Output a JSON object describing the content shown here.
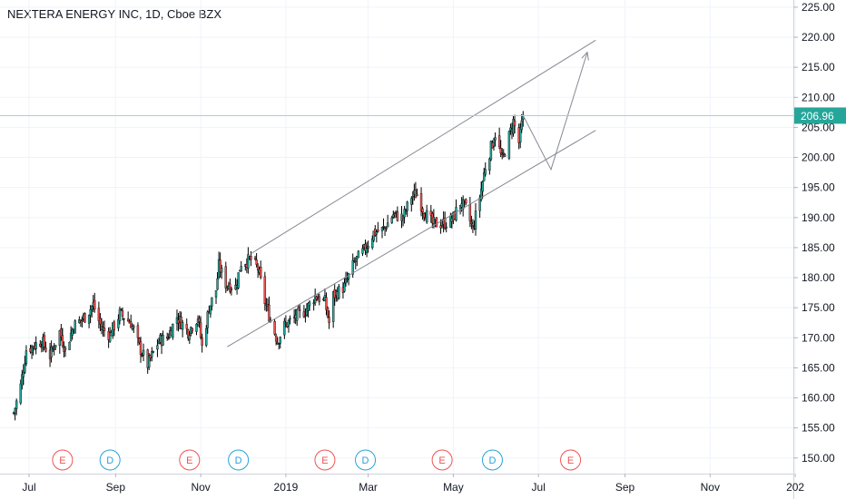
{
  "header": {
    "title": "NEXTERA ENERGY INC, 1D, Cboe BZX"
  },
  "chart_data": {
    "type": "candlestick",
    "title": "NEXTERA ENERGY INC, 1D, Cboe BZX",
    "last_price": 206.96,
    "y_ticks": [
      "225.00",
      "220.00",
      "215.00",
      "210.00",
      "205.00",
      "200.00",
      "195.00",
      "190.00",
      "185.00",
      "180.00",
      "175.00",
      "170.00",
      "165.00",
      "160.00",
      "155.00",
      "150.00"
    ],
    "x_ticks": [
      "Jul",
      "Sep",
      "Nov",
      "2019",
      "Mar",
      "May",
      "Jul",
      "Sep",
      "Nov",
      "202"
    ],
    "ylim": [
      148.5,
      225.5
    ],
    "grid": true,
    "colors": {
      "up": "#26a69a",
      "down": "#ef5350",
      "wick": "#000000",
      "line": "#868993",
      "price_line": "#9fd4d6",
      "label_bg": "#26a69a"
    },
    "events": [
      {
        "label": "E",
        "date": "2018-07-25"
      },
      {
        "label": "D",
        "date": "2018-08-28"
      },
      {
        "label": "E",
        "date": "2018-10-24"
      },
      {
        "label": "D",
        "date": "2018-11-28"
      },
      {
        "label": "E",
        "date": "2019-01-29"
      },
      {
        "label": "D",
        "date": "2019-02-27"
      },
      {
        "label": "E",
        "date": "2019-04-23"
      },
      {
        "label": "D",
        "date": "2019-05-29"
      },
      {
        "label": "E",
        "date": "2019-07-24"
      }
    ],
    "price_path": [
      [
        "2018-06-20",
        157.5
      ],
      [
        "2018-06-25",
        162
      ],
      [
        "2018-06-29",
        168
      ],
      [
        "2018-07-10",
        169.5
      ],
      [
        "2018-07-16",
        167
      ],
      [
        "2018-07-23",
        171
      ],
      [
        "2018-07-27",
        168
      ],
      [
        "2018-08-02",
        172
      ],
      [
        "2018-08-10",
        173.5
      ],
      [
        "2018-08-16",
        175.5
      ],
      [
        "2018-08-22",
        171.5
      ],
      [
        "2018-08-28",
        170.5
      ],
      [
        "2018-09-04",
        174
      ],
      [
        "2018-09-12",
        172.5
      ],
      [
        "2018-09-18",
        168.5
      ],
      [
        "2018-09-24",
        165.5
      ],
      [
        "2018-10-02",
        169.5
      ],
      [
        "2018-10-08",
        170
      ],
      [
        "2018-10-15",
        173.5
      ],
      [
        "2018-10-23",
        171
      ],
      [
        "2018-10-30",
        173.5
      ],
      [
        "2018-11-02",
        168.5
      ],
      [
        "2018-11-07",
        175
      ],
      [
        "2018-11-12",
        178
      ],
      [
        "2018-11-14",
        182
      ],
      [
        "2018-11-19",
        179
      ],
      [
        "2018-11-26",
        178.5
      ],
      [
        "2018-11-30",
        182.5
      ],
      [
        "2018-12-07",
        183
      ],
      [
        "2018-12-12",
        181.5
      ],
      [
        "2018-12-17",
        176
      ],
      [
        "2018-12-21",
        173
      ],
      [
        "2018-12-26",
        169.5
      ],
      [
        "2018-12-31",
        172
      ],
      [
        "2019-01-08",
        173.5
      ],
      [
        "2019-01-15",
        174.5
      ],
      [
        "2019-01-22",
        177
      ],
      [
        "2019-01-29",
        176
      ],
      [
        "2019-02-01",
        172.5
      ],
      [
        "2019-02-04",
        177
      ],
      [
        "2019-02-12",
        178.5
      ],
      [
        "2019-02-19",
        182.5
      ],
      [
        "2019-02-26",
        184.5
      ],
      [
        "2019-03-05",
        187.5
      ],
      [
        "2019-03-12",
        188
      ],
      [
        "2019-03-19",
        190.5
      ],
      [
        "2019-03-26",
        190
      ],
      [
        "2019-04-01",
        193.5
      ],
      [
        "2019-04-05",
        194
      ],
      [
        "2019-04-10",
        191
      ],
      [
        "2019-04-16",
        189
      ],
      [
        "2019-04-23",
        189
      ],
      [
        "2019-04-30",
        189.5
      ],
      [
        "2019-05-06",
        192.5
      ],
      [
        "2019-05-10",
        191.5
      ],
      [
        "2019-05-15",
        188
      ],
      [
        "2019-05-20",
        193.5
      ],
      [
        "2019-05-24",
        198.5
      ],
      [
        "2019-05-31",
        204
      ],
      [
        "2019-06-05",
        199.5
      ],
      [
        "2019-06-10",
        203.5
      ],
      [
        "2019-06-13",
        206
      ],
      [
        "2019-06-17",
        202.5
      ],
      [
        "2019-06-20",
        206.96
      ]
    ],
    "channel_upper": [
      [
        "2018-12-07",
        184
      ],
      [
        "2019-08-11",
        219.5
      ]
    ],
    "channel_lower": [
      [
        "2018-11-20",
        168.5
      ],
      [
        "2019-08-11",
        204.5
      ]
    ],
    "projection": [
      [
        "2019-06-20",
        207
      ],
      [
        "2019-07-10",
        198
      ],
      [
        "2019-08-05",
        217.5
      ]
    ]
  }
}
